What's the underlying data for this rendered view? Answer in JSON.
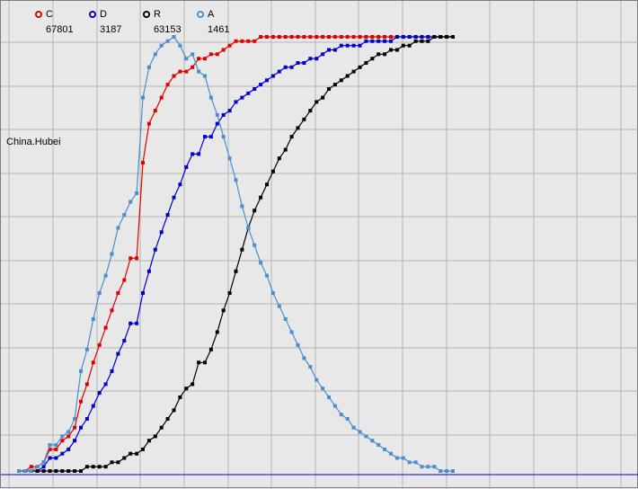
{
  "region_label": "China.Hubei",
  "legend": [
    {
      "key": "C",
      "value": "67801",
      "color": "#e00000"
    },
    {
      "key": "D",
      "value": "3187",
      "color": "#0000d0"
    },
    {
      "key": "R",
      "value": "63153",
      "color": "#000000"
    },
    {
      "key": "A",
      "value": "1461",
      "color": "#4a8ed0"
    }
  ],
  "chart_data": {
    "type": "line",
    "title": "",
    "xlabel": "",
    "ylabel": "",
    "grid": true,
    "legend_position": "top-left",
    "normalized": true,
    "x": [
      0,
      1,
      2,
      3,
      4,
      5,
      6,
      7,
      8,
      9,
      10,
      11,
      12,
      13,
      14,
      15,
      16,
      17,
      18,
      19,
      20,
      21,
      22,
      23,
      24,
      25,
      26,
      27,
      28,
      29,
      30,
      31,
      32,
      33,
      34,
      35,
      36,
      37,
      38,
      39,
      40,
      41,
      42,
      43,
      44,
      45,
      46,
      47,
      48,
      49,
      50,
      51,
      52,
      53,
      54,
      55,
      56,
      57,
      58,
      59,
      60,
      61,
      62,
      63,
      64,
      65,
      66,
      67,
      68,
      69,
      70
    ],
    "series": [
      {
        "name": "C",
        "color": "#e00000",
        "values": [
          0.0,
          0.0,
          0.01,
          0.01,
          0.02,
          0.05,
          0.05,
          0.07,
          0.08,
          0.1,
          0.16,
          0.2,
          0.25,
          0.29,
          0.33,
          0.37,
          0.41,
          0.44,
          0.49,
          0.49,
          0.71,
          0.8,
          0.83,
          0.86,
          0.89,
          0.91,
          0.92,
          0.92,
          0.93,
          0.95,
          0.95,
          0.96,
          0.96,
          0.97,
          0.98,
          0.99,
          0.99,
          0.99,
          0.99,
          1.0,
          1.0,
          1.0,
          1.0,
          1.0,
          1.0,
          1.0,
          1.0,
          1.0,
          1.0,
          1.0,
          1.0,
          1.0,
          1.0,
          1.0,
          1.0,
          1.0,
          1.0,
          1.0,
          1.0,
          1.0,
          1.0,
          1.0,
          1.0,
          1.0,
          1.0,
          1.0,
          1.0,
          1.0,
          1.0,
          1.0,
          1.0
        ]
      },
      {
        "name": "D",
        "color": "#0000d0",
        "values": [
          0.0,
          0.0,
          0.0,
          0.0,
          0.01,
          0.03,
          0.03,
          0.04,
          0.05,
          0.07,
          0.1,
          0.12,
          0.15,
          0.18,
          0.2,
          0.23,
          0.27,
          0.3,
          0.34,
          0.34,
          0.41,
          0.46,
          0.51,
          0.55,
          0.59,
          0.63,
          0.66,
          0.7,
          0.73,
          0.73,
          0.77,
          0.77,
          0.8,
          0.82,
          0.83,
          0.85,
          0.86,
          0.87,
          0.88,
          0.89,
          0.9,
          0.91,
          0.92,
          0.93,
          0.93,
          0.94,
          0.94,
          0.95,
          0.95,
          0.96,
          0.97,
          0.97,
          0.98,
          0.98,
          0.98,
          0.98,
          0.99,
          0.99,
          0.99,
          0.99,
          0.99,
          1.0,
          1.0,
          1.0,
          1.0,
          1.0,
          1.0,
          1.0,
          1.0,
          1.0,
          1.0
        ]
      },
      {
        "name": "R",
        "color": "#000000",
        "values": [
          0.0,
          0.0,
          0.0,
          0.0,
          0.0,
          0.0,
          0.0,
          0.0,
          0.0,
          0.0,
          0.0,
          0.01,
          0.01,
          0.01,
          0.01,
          0.02,
          0.02,
          0.03,
          0.04,
          0.04,
          0.05,
          0.07,
          0.08,
          0.1,
          0.12,
          0.14,
          0.17,
          0.19,
          0.2,
          0.25,
          0.25,
          0.28,
          0.32,
          0.37,
          0.41,
          0.46,
          0.51,
          0.56,
          0.6,
          0.63,
          0.66,
          0.69,
          0.72,
          0.74,
          0.77,
          0.79,
          0.81,
          0.83,
          0.85,
          0.86,
          0.88,
          0.89,
          0.9,
          0.91,
          0.92,
          0.93,
          0.94,
          0.95,
          0.96,
          0.96,
          0.97,
          0.97,
          0.98,
          0.98,
          0.99,
          0.99,
          0.99,
          1.0,
          1.0,
          1.0,
          1.0
        ]
      },
      {
        "name": "A",
        "color": "#4a8ed0",
        "values": [
          0.0,
          0.0,
          0.0,
          0.01,
          0.02,
          0.06,
          0.06,
          0.08,
          0.09,
          0.12,
          0.23,
          0.28,
          0.35,
          0.41,
          0.45,
          0.5,
          0.56,
          0.59,
          0.62,
          0.64,
          0.86,
          0.93,
          0.96,
          0.98,
          0.99,
          1.0,
          0.98,
          0.95,
          0.96,
          0.92,
          0.91,
          0.86,
          0.82,
          0.77,
          0.72,
          0.67,
          0.61,
          0.56,
          0.52,
          0.48,
          0.45,
          0.41,
          0.38,
          0.35,
          0.32,
          0.29,
          0.26,
          0.24,
          0.21,
          0.19,
          0.17,
          0.15,
          0.13,
          0.12,
          0.1,
          0.09,
          0.08,
          0.07,
          0.06,
          0.05,
          0.04,
          0.03,
          0.03,
          0.02,
          0.02,
          0.01,
          0.01,
          0.01,
          0.0,
          0.0,
          0.0
        ]
      }
    ]
  }
}
